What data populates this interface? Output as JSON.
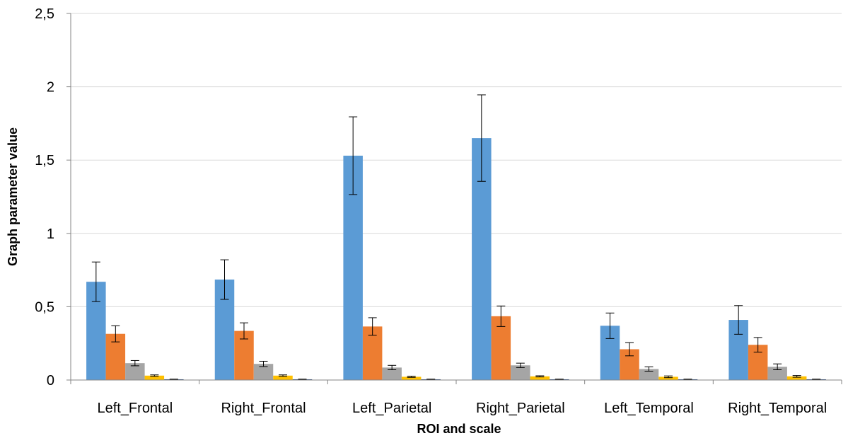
{
  "chart_data": {
    "type": "bar",
    "title": "",
    "xlabel": "ROI and scale",
    "ylabel": "Graph parameter value",
    "ylim": [
      0,
      2.5
    ],
    "yticks": [
      "0",
      "0,5",
      "1",
      "1,5",
      "2",
      "2,5"
    ],
    "grid": true,
    "legend": "none",
    "categories": [
      "Left_Frontal",
      "Right_Frontal",
      "Left_Parietal",
      "Right_Parietal",
      "Left_Temporal",
      "Right_Temporal"
    ],
    "series": [
      {
        "color": "#5B9BD5",
        "values": [
          0.67,
          0.685,
          1.53,
          1.65,
          0.37,
          0.41
        ],
        "errors": [
          0.135,
          0.135,
          0.265,
          0.295,
          0.087,
          0.098
        ]
      },
      {
        "color": "#ED7D31",
        "values": [
          0.315,
          0.335,
          0.365,
          0.435,
          0.21,
          0.24
        ],
        "errors": [
          0.055,
          0.055,
          0.06,
          0.07,
          0.045,
          0.05
        ]
      },
      {
        "color": "#A5A5A5",
        "values": [
          0.115,
          0.11,
          0.085,
          0.1,
          0.075,
          0.09
        ],
        "errors": [
          0.018,
          0.018,
          0.015,
          0.015,
          0.015,
          0.02
        ]
      },
      {
        "color": "#FFC000",
        "values": [
          0.03,
          0.03,
          0.022,
          0.025,
          0.022,
          0.025
        ],
        "errors": [
          0.005,
          0.005,
          0.004,
          0.004,
          0.006,
          0.006
        ]
      },
      {
        "color": "#264478",
        "values": [
          0.005,
          0.005,
          0.005,
          0.005,
          0.005,
          0.005
        ],
        "errors": [
          0.001,
          0.001,
          0.001,
          0.001,
          0.001,
          0.001
        ]
      }
    ]
  }
}
